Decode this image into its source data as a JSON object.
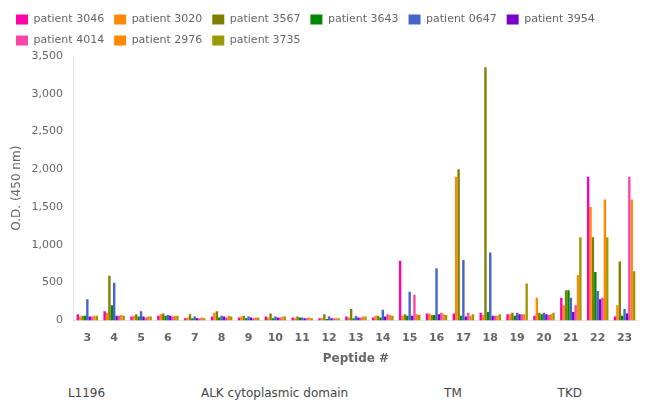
{
  "chart_data": {
    "type": "bar",
    "categories": [
      "3",
      "4",
      "5",
      "6",
      "7",
      "8",
      "9",
      "10",
      "11",
      "12",
      "13",
      "14",
      "15",
      "16",
      "17",
      "18",
      "19",
      "20",
      "21",
      "22",
      "23"
    ],
    "series": [
      {
        "name": "patient 3046",
        "color": "#ff00aa",
        "values": [
          80,
          120,
          50,
          60,
          30,
          50,
          40,
          50,
          40,
          30,
          50,
          40,
          790,
          90,
          90,
          100,
          80,
          60,
          300,
          1900,
          50
        ]
      },
      {
        "name": "patient 3020",
        "color": "#ff8800",
        "values": [
          50,
          100,
          60,
          80,
          40,
          100,
          50,
          40,
          30,
          30,
          40,
          60,
          60,
          90,
          1900,
          70,
          80,
          300,
          200,
          1500,
          200
        ]
      },
      {
        "name": "patient 3567",
        "color": "#808000",
        "values": [
          60,
          590,
          80,
          90,
          80,
          120,
          60,
          90,
          50,
          80,
          150,
          60,
          80,
          70,
          2000,
          3350,
          100,
          100,
          400,
          1100,
          780
        ]
      },
      {
        "name": "patient 3643",
        "color": "#008800",
        "values": [
          60,
          200,
          50,
          60,
          30,
          40,
          30,
          30,
          40,
          20,
          30,
          40,
          60,
          70,
          60,
          110,
          60,
          80,
          400,
          640,
          60
        ]
      },
      {
        "name": "patient 0647",
        "color": "#4466cc",
        "values": [
          280,
          500,
          120,
          70,
          50,
          60,
          50,
          50,
          40,
          50,
          60,
          140,
          380,
          690,
          800,
          900,
          100,
          100,
          300,
          390,
          150
        ]
      },
      {
        "name": "patient 3954",
        "color": "#7700cc",
        "values": [
          50,
          60,
          50,
          60,
          30,
          50,
          40,
          40,
          30,
          30,
          40,
          50,
          60,
          80,
          50,
          60,
          80,
          80,
          110,
          280,
          90
        ]
      },
      {
        "name": "patient 4014",
        "color": "#ff44aa",
        "values": [
          50,
          60,
          40,
          50,
          30,
          40,
          30,
          40,
          30,
          30,
          40,
          80,
          340,
          100,
          100,
          60,
          80,
          70,
          200,
          300,
          1900
        ]
      },
      {
        "name": "patient 2976",
        "color": "#ff8800",
        "values": [
          60,
          70,
          50,
          60,
          40,
          60,
          40,
          50,
          40,
          30,
          50,
          70,
          80,
          80,
          60,
          60,
          80,
          80,
          600,
          1600,
          1600
        ]
      },
      {
        "name": "patient 3735",
        "color": "#999900",
        "values": [
          60,
          60,
          50,
          60,
          30,
          50,
          40,
          50,
          30,
          30,
          50,
          60,
          70,
          70,
          80,
          80,
          490,
          100,
          1100,
          1100,
          650
        ]
      }
    ],
    "xlabel": "Peptide #",
    "ylabel": "O.D. (450 nm)",
    "ylim": [
      0,
      3500
    ],
    "yticks": [
      0,
      500,
      1000,
      1500,
      2000,
      2500,
      3000,
      3500
    ],
    "grid": false,
    "legend": "upper left",
    "annotations": [
      "L1196",
      "ALK cytoplasmic domain",
      "TM",
      "TKD"
    ]
  }
}
